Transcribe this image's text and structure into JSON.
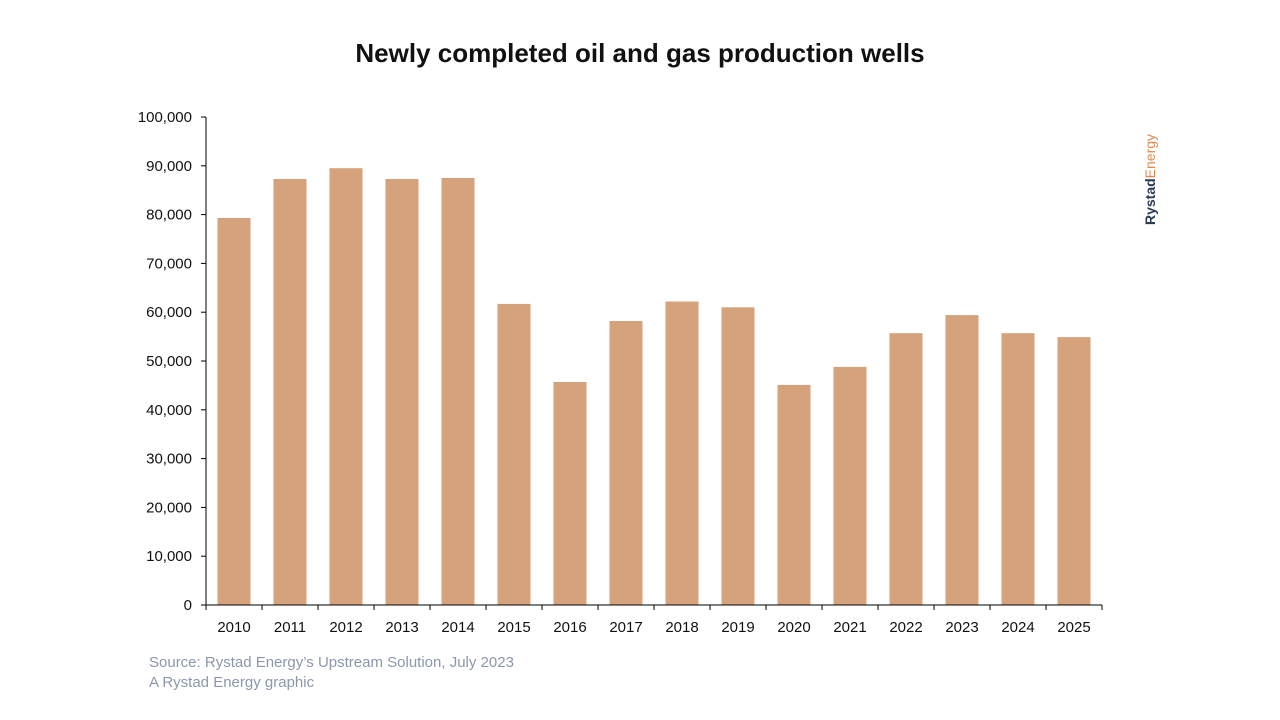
{
  "chart_data": {
    "type": "bar",
    "title": "Newly completed oil and gas production wells",
    "categories": [
      "2010",
      "2011",
      "2012",
      "2013",
      "2014",
      "2015",
      "2016",
      "2017",
      "2018",
      "2019",
      "2020",
      "2021",
      "2022",
      "2023",
      "2024",
      "2025"
    ],
    "values": [
      79300,
      87300,
      89500,
      87300,
      87500,
      61700,
      45700,
      58200,
      62200,
      61000,
      45100,
      48800,
      55700,
      59400,
      55700,
      54900
    ],
    "ylim": [
      0,
      100000
    ],
    "yticks": [
      0,
      10000,
      20000,
      30000,
      40000,
      50000,
      60000,
      70000,
      80000,
      90000,
      100000
    ],
    "ytick_labels": [
      "0",
      "10,000",
      "20,000",
      "30,000",
      "40,000",
      "50,000",
      "60,000",
      "70,000",
      "80,000",
      "90,000",
      "100,000"
    ],
    "xlabel": "",
    "ylabel": "",
    "grid": false,
    "bar_color": "#d6a27c"
  },
  "footer": {
    "source": "Source: Rystad Energy’s Upstream Solution, July 2023",
    "credit": "A Rystad Energy graphic"
  },
  "logo": {
    "part1": "Rystad",
    "part2": "Energy",
    "color1": "#2b3a55",
    "color2": "#e08a4e"
  },
  "colors": {
    "axis": "#000000",
    "text": "#111111",
    "footer": "#8b97ad"
  }
}
